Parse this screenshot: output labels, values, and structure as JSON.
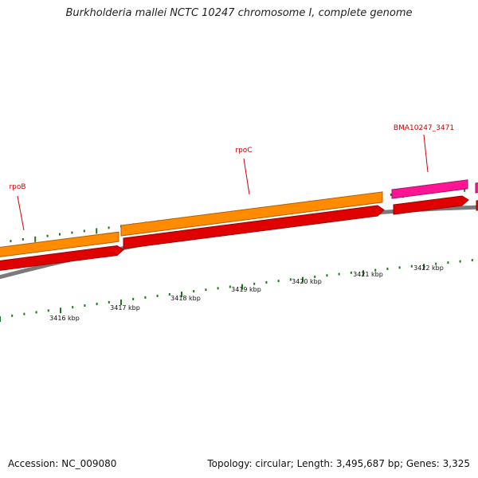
{
  "title": "Burkholderia mallei NCTC 10247 chromosome I, complete genome",
  "footer": {
    "accession": "Accession: NC_009080",
    "summary": "Topology: circular; Length: 3,495,687 bp; Genes: 3,325"
  },
  "colors": {
    "gene_forward": "#ff8c00",
    "gene_forward_dark": "#b35f00",
    "cds_forward": "#e00000",
    "cds_forward_dark": "#990000",
    "pseudo_gene": "#ff1493",
    "pseudo_dark": "#a8106a",
    "backbone": "#7a7a7a",
    "ticks": "#1a7a1a",
    "gene_label": "#cc0000"
  },
  "gene_labels": [
    {
      "name": "rpoB"
    },
    {
      "name": "rpoC"
    },
    {
      "name": "BMA10247_3471"
    }
  ],
  "scale_labels": [
    "3416 kbp",
    "3417 kbp",
    "3418 kbp",
    "3419 kbp",
    "3420 kbp",
    "3421 kbp",
    "3422 kbp"
  ]
}
